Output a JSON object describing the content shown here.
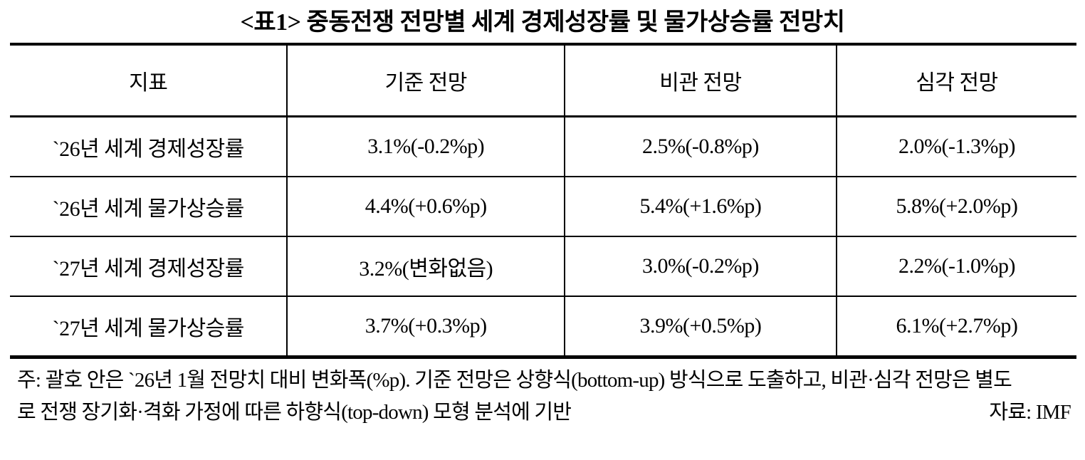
{
  "title": "<표1> 중동전쟁 전망별 세계 경제성장률 및 물가상승률 전망치",
  "table": {
    "columns": [
      "지표",
      "기준 전망",
      "비관 전망",
      "심각 전망"
    ],
    "rows": [
      [
        "`26년 세계 경제성장률",
        "3.1%(-0.2%p)",
        "2.5%(-0.8%p)",
        "2.0%(-1.3%p)"
      ],
      [
        "`26년 세계 물가상승률",
        "4.4%(+0.6%p)",
        "5.4%(+1.6%p)",
        "5.8%(+2.0%p)"
      ],
      [
        "`27년 세계 경제성장률",
        "3.2%(변화없음)",
        "3.0%(-0.2%p)",
        "2.2%(-1.0%p)"
      ],
      [
        "`27년 세계 물가상승률",
        "3.7%(+0.3%p)",
        "3.9%(+0.5%p)",
        "6.1%(+2.7%p)"
      ]
    ]
  },
  "notes": {
    "line1": "주: 괄호 안은 `26년 1월 전망치 대비 변화폭(%p). 기준 전망은 상향식(bottom-up) 방식으로 도출하고, 비관·심각 전망은 별도",
    "line2": "로 전쟁 장기화·격화 가정에 따른 하향식(top-down) 모형 분석에 기반",
    "source": "자료: IMF"
  }
}
